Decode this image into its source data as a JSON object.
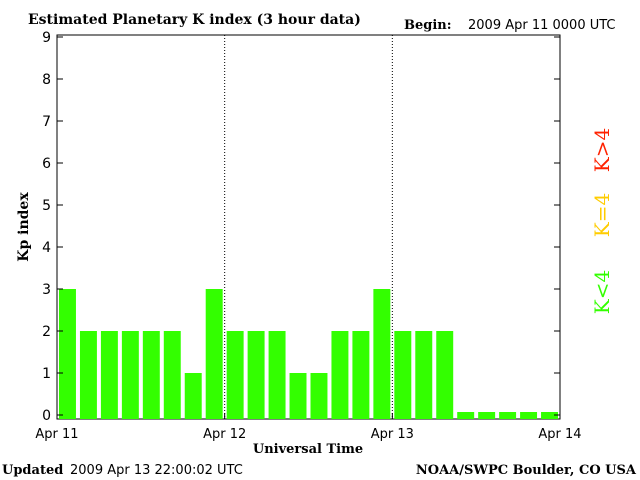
{
  "header": {
    "title": "Estimated Planetary K index (3 hour data)",
    "begin_label": "Begin:",
    "begin_value": "2009 Apr 11 0000 UTC"
  },
  "footer": {
    "updated_label": "Updated",
    "updated_value": "2009 Apr 13 22:00:02 UTC",
    "source": "NOAA/SWPC Boulder, CO USA"
  },
  "legend": {
    "high": "K>4",
    "mid": "K=4",
    "low": "K<4"
  },
  "colors": {
    "low": "#33ff00",
    "mid": "#ffcc00",
    "high": "#ff2200",
    "axis": "#000000"
  },
  "chart_data": {
    "type": "bar",
    "title": "Estimated Planetary K index (3 hour data)",
    "xlabel": "Universal Time",
    "ylabel": "Kp index",
    "ylim": [
      0,
      9
    ],
    "yticks": [
      "0",
      "1",
      "2",
      "3",
      "4",
      "5",
      "6",
      "7",
      "8",
      "9"
    ],
    "xticks": [
      "Apr 11",
      "Apr 12",
      "Apr 13",
      "Apr 14"
    ],
    "values": [
      3,
      2,
      2,
      2,
      2,
      2,
      1,
      3,
      2,
      2,
      2,
      1,
      1,
      2,
      2,
      3,
      2,
      2,
      2,
      0,
      0,
      0,
      0,
      0
    ],
    "interval_hours": 3,
    "grid": false,
    "legend_position": "right"
  }
}
